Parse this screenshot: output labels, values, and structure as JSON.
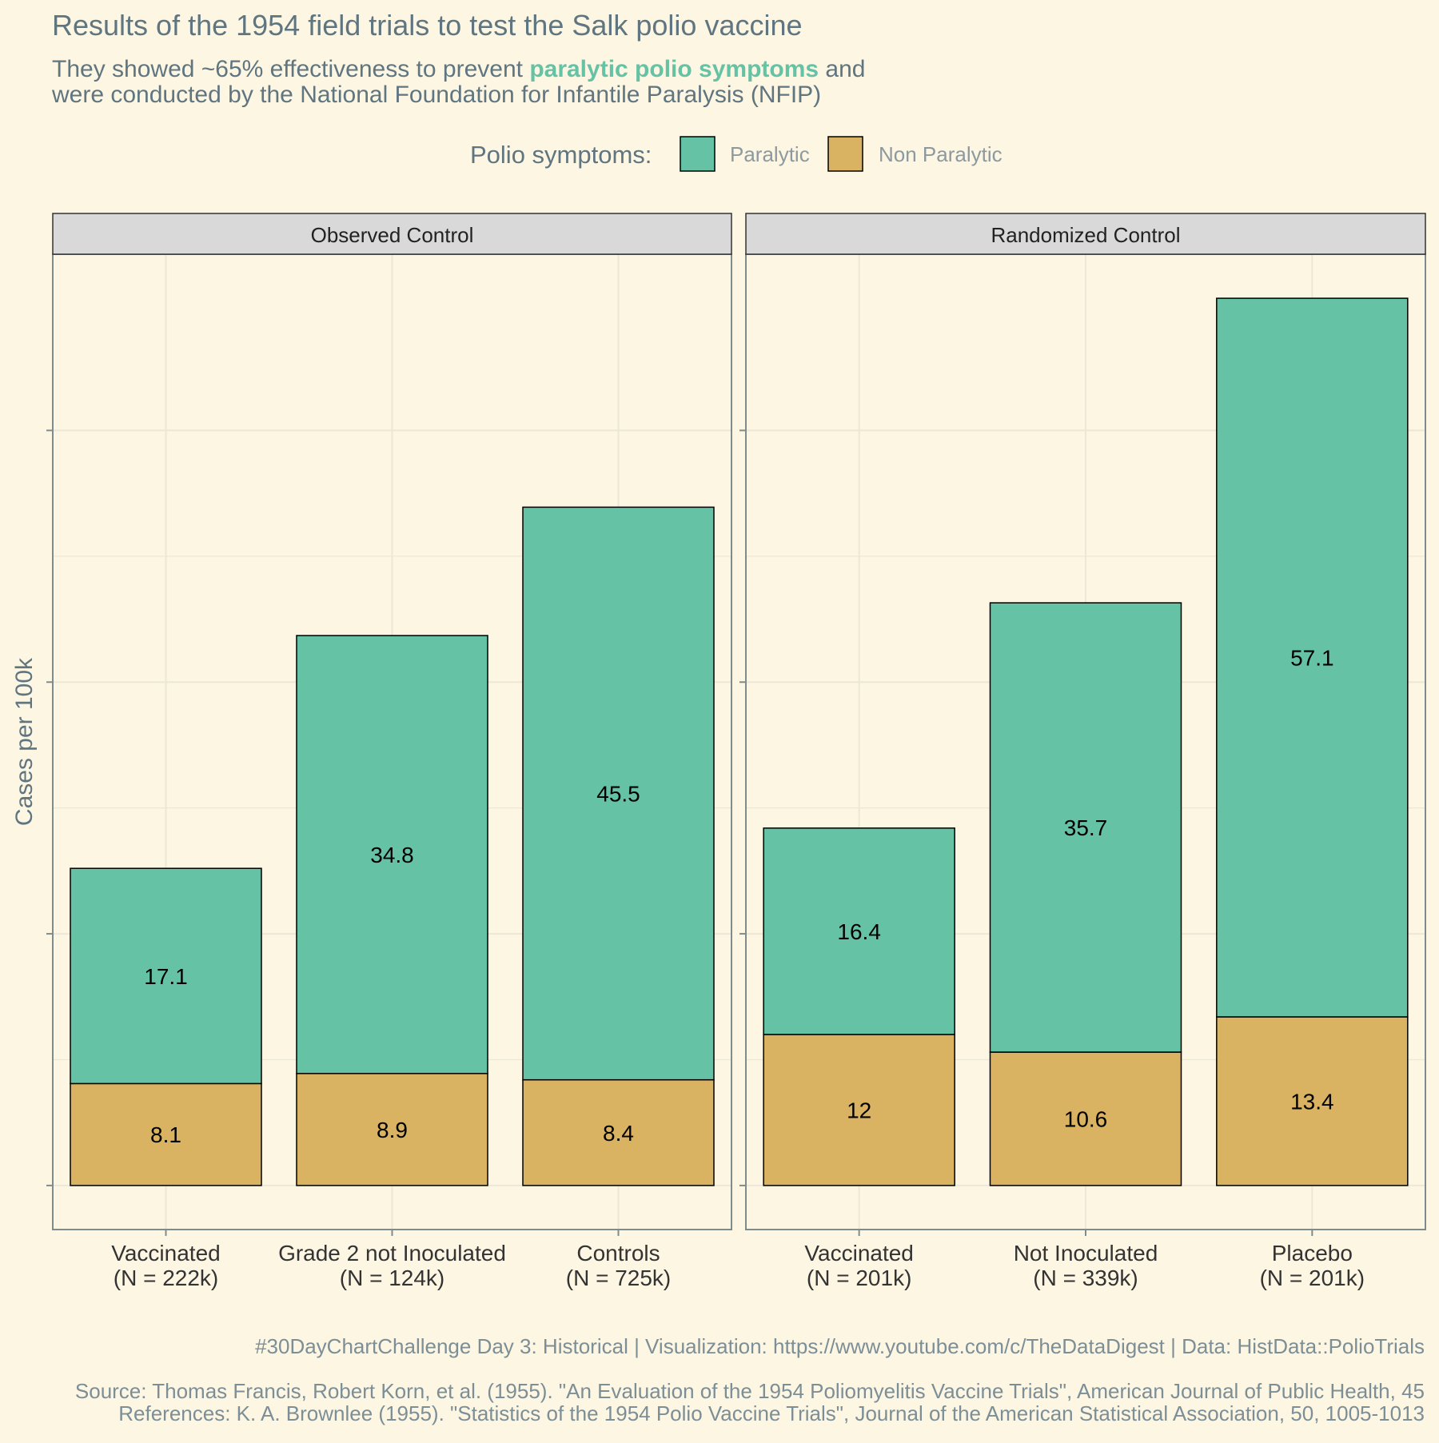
{
  "title": "Results of the 1954 field trials to test the Salk polio vaccine",
  "subtitle": {
    "line1_pre": "They showed ~65% effectiveness to prevent ",
    "line1_highlight": "paralytic polio symptoms",
    "line1_post": " and",
    "line2": "were conducted by the National Foundation for Infantile Paralysis (NFIP)"
  },
  "legend": {
    "title": "Polio symptoms:",
    "items": [
      {
        "label": "Paralytic",
        "color": "#66c2a5"
      },
      {
        "label": "Non Paralytic",
        "color": "#d9b262"
      }
    ]
  },
  "caption": {
    "line1": "#30DayChartChallenge Day 3: Historical | Visualization: https://www.youtube.com/c/TheDataDigest | Data: HistData::PolioTrials",
    "line2": "Source: Thomas Francis, Robert Korn, et al. (1955). \"An Evaluation of the 1954 Poliomyelitis Vaccine Trials\", American Journal of Public Health, 45",
    "line3": "References: K. A. Brownlee (1955). \"Statistics of the 1954 Polio Vaccine Trials\", Journal of the American Statistical Association, 50, 1005-1013"
  },
  "colors": {
    "paralytic": "#66c2a5",
    "non_paralytic": "#d9b262",
    "background": "#fdf6e3",
    "strip": "#d9d9d9",
    "axis": "#7f8c8d",
    "grid": "#ece7d6"
  },
  "chart_data": {
    "type": "bar",
    "stacked": true,
    "ylabel": "Cases per 100k",
    "ylim": [
      -3.5,
      74
    ],
    "y_breaks": [
      0,
      20,
      40,
      60
    ],
    "y_tick_labels_shown": false,
    "grid": true,
    "legend_position": "top",
    "facets": [
      {
        "name": "Observed Control",
        "categories": [
          {
            "line1": "Vaccinated",
            "line2": "(N = 222k)"
          },
          {
            "line1": "Grade 2 not Inoculated",
            "line2": "(N = 124k)"
          },
          {
            "line1": "Controls",
            "line2": "(N = 725k)"
          }
        ],
        "series": [
          {
            "name": "Non Paralytic",
            "values": [
              8.1,
              8.9,
              8.4
            ],
            "labels": [
              "8.1",
              "8.9",
              "8.4"
            ]
          },
          {
            "name": "Paralytic",
            "values": [
              17.1,
              34.8,
              45.5
            ],
            "labels": [
              "17.1",
              "34.8",
              "45.5"
            ]
          }
        ]
      },
      {
        "name": "Randomized Control",
        "categories": [
          {
            "line1": "Vaccinated",
            "line2": "(N = 201k)"
          },
          {
            "line1": "Not Inoculated",
            "line2": "(N = 339k)"
          },
          {
            "line1": "Placebo",
            "line2": "(N = 201k)"
          }
        ],
        "series": [
          {
            "name": "Non Paralytic",
            "values": [
              12,
              10.6,
              13.4
            ],
            "labels": [
              "12",
              "10.6",
              "13.4"
            ]
          },
          {
            "name": "Paralytic",
            "values": [
              16.4,
              35.7,
              57.1
            ],
            "labels": [
              "16.4",
              "35.7",
              "57.1"
            ]
          }
        ]
      }
    ]
  }
}
